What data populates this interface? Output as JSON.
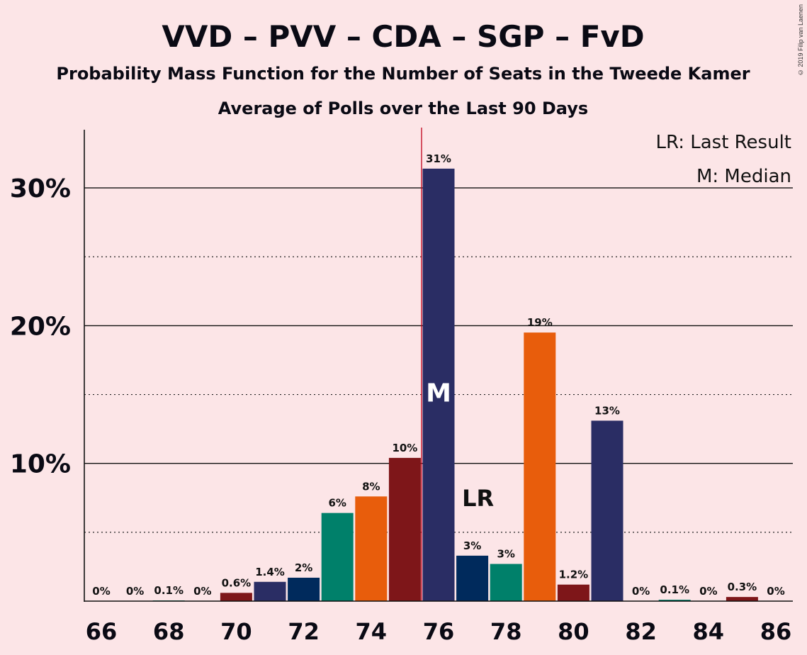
{
  "copyright": "© 2019 Filip van Laenen",
  "chart_data": {
    "type": "bar",
    "title": "VVD – PVV – CDA – SGP – FvD",
    "subtitle": "Probability Mass Function for the Number of Seats in the Tweede Kamer",
    "subtitle2": "Average of Polls over the Last 90 Days",
    "xlabel": "",
    "ylabel": "",
    "ylim": [
      0,
      34
    ],
    "y_ticks": [
      {
        "value": 10,
        "label": "10%"
      },
      {
        "value": 20,
        "label": "20%"
      },
      {
        "value": 30,
        "label": "30%"
      }
    ],
    "minor_gridlines": [
      5,
      15,
      25
    ],
    "x_tick_labels": [
      "66",
      "68",
      "70",
      "72",
      "74",
      "76",
      "78",
      "80",
      "82",
      "84",
      "86"
    ],
    "x_ticks": [
      66,
      68,
      70,
      72,
      74,
      76,
      78,
      80,
      82,
      84,
      86
    ],
    "x": [
      66,
      67,
      68,
      69,
      70,
      71,
      72,
      73,
      74,
      75,
      76,
      77,
      78,
      79,
      80,
      81,
      82,
      83,
      84,
      85,
      86
    ],
    "values": [
      0,
      0,
      0.05,
      0,
      0.6,
      1.4,
      1.7,
      6.4,
      7.6,
      10.4,
      31.4,
      3.3,
      2.7,
      19.5,
      1.2,
      13.1,
      0,
      0.1,
      0,
      0.3,
      0
    ],
    "labels": [
      "0%",
      "0%",
      "0.1%",
      "0%",
      "0.6%",
      "1.4%",
      "2%",
      "6%",
      "8%",
      "10%",
      "31%",
      "3%",
      "3%",
      "19%",
      "1.2%",
      "13%",
      "0%",
      "0.1%",
      "0%",
      "0.3%",
      "0%"
    ],
    "colors": [
      "#2A2D64",
      "#002A5C",
      "#00806A",
      "#E85D0C",
      "#7E1619"
    ],
    "median": 76,
    "median_label": "M",
    "last_result": 77,
    "last_result_label": "LR",
    "legend": [
      "LR: Last Result",
      "M: Median"
    ],
    "legend_position": "top-right"
  }
}
